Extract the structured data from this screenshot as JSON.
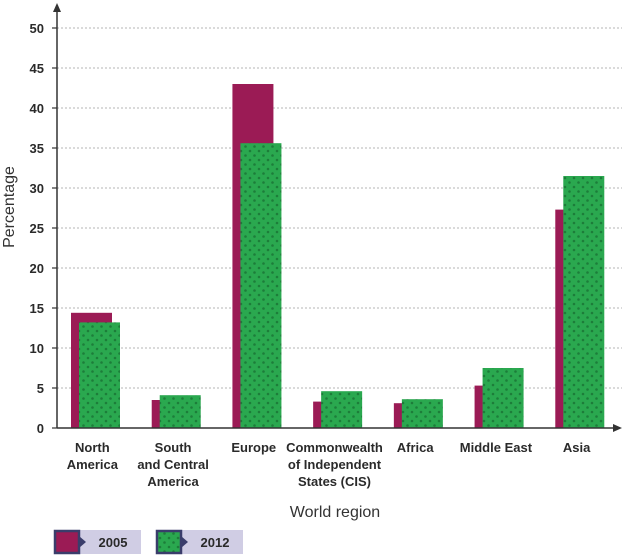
{
  "chart_data": {
    "type": "bar",
    "categories": [
      [
        "North",
        "America"
      ],
      [
        "South",
        "and Central",
        "America"
      ],
      [
        "Europe"
      ],
      [
        "Commonwealth",
        "of Independent",
        "States (CIS)"
      ],
      [
        "Africa"
      ],
      [
        "Middle East"
      ],
      [
        "Asia"
      ]
    ],
    "series": [
      {
        "name": "2005",
        "values": [
          14.4,
          3.5,
          43.0,
          3.3,
          3.1,
          5.3,
          27.3
        ],
        "color": "#9b1b55"
      },
      {
        "name": "2012",
        "values": [
          13.2,
          4.1,
          35.6,
          4.6,
          3.6,
          7.5,
          31.5
        ],
        "color": "#2aa84f"
      }
    ],
    "xlabel": "World region",
    "ylabel": "Percentage",
    "ylim": [
      0,
      50
    ],
    "yticks": [
      0,
      5,
      10,
      15,
      20,
      25,
      30,
      35,
      40,
      45,
      50
    ],
    "grid": true,
    "legend_position": "bottom-left"
  }
}
